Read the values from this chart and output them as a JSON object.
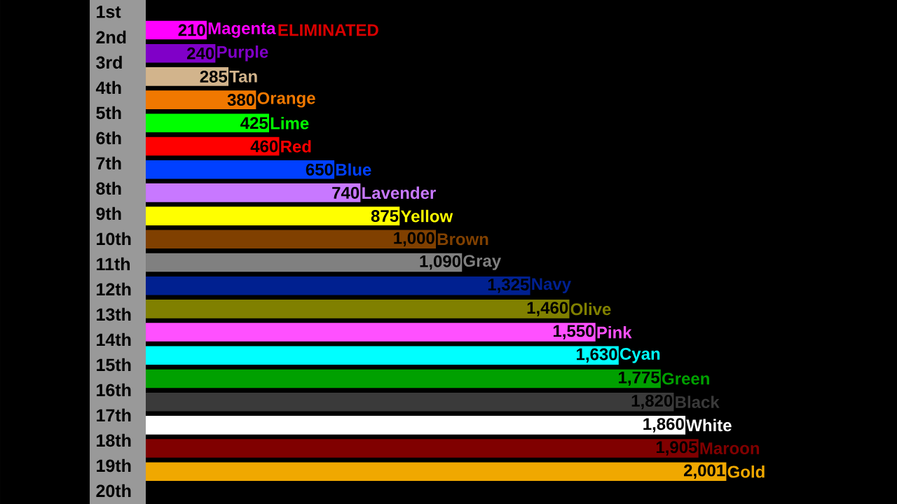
{
  "chart_data": {
    "type": "bar",
    "orientation": "horizontal",
    "categories": [
      "Magenta",
      "Purple",
      "Tan",
      "Orange",
      "Lime",
      "Red",
      "Blue",
      "Lavender",
      "Yellow",
      "Brown",
      "Gray",
      "Navy",
      "Olive",
      "Pink",
      "Cyan",
      "Green",
      "Black",
      "White",
      "Maroon",
      "Gold"
    ],
    "values": [
      210,
      240,
      285,
      380,
      425,
      460,
      650,
      740,
      875,
      1000,
      1090,
      1325,
      1460,
      1550,
      1630,
      1775,
      1820,
      1860,
      1905,
      2001
    ],
    "value_labels": [
      "210",
      "240",
      "285",
      "380",
      "425",
      "460",
      "650",
      "740",
      "875",
      "1,000",
      "1,090",
      "1,325",
      "1,460",
      "1,550",
      "1,630",
      "1,775",
      "1,820",
      "1,860",
      "1,905",
      "2,001"
    ],
    "colors": [
      "#ff00ff",
      "#8000c8",
      "#d2b48c",
      "#f07800",
      "#00ff00",
      "#ff0000",
      "#0040ff",
      "#c878ff",
      "#ffff00",
      "#804000",
      "#808080",
      "#002090",
      "#808000",
      "#ff50ff",
      "#00ffff",
      "#00a000",
      "#3a3a3a",
      "#ffffff",
      "#800000",
      "#f0a800"
    ],
    "annotations": [
      "ELIMINATED",
      "1st",
      "2nd",
      "3rd",
      "4th",
      "5th",
      "6th",
      "7th",
      "8th",
      "9th",
      "10th",
      "11th",
      "12th",
      "13th",
      "14th",
      "15th",
      "16th",
      "17th",
      "18th",
      "19th",
      "20th"
    ]
  }
}
